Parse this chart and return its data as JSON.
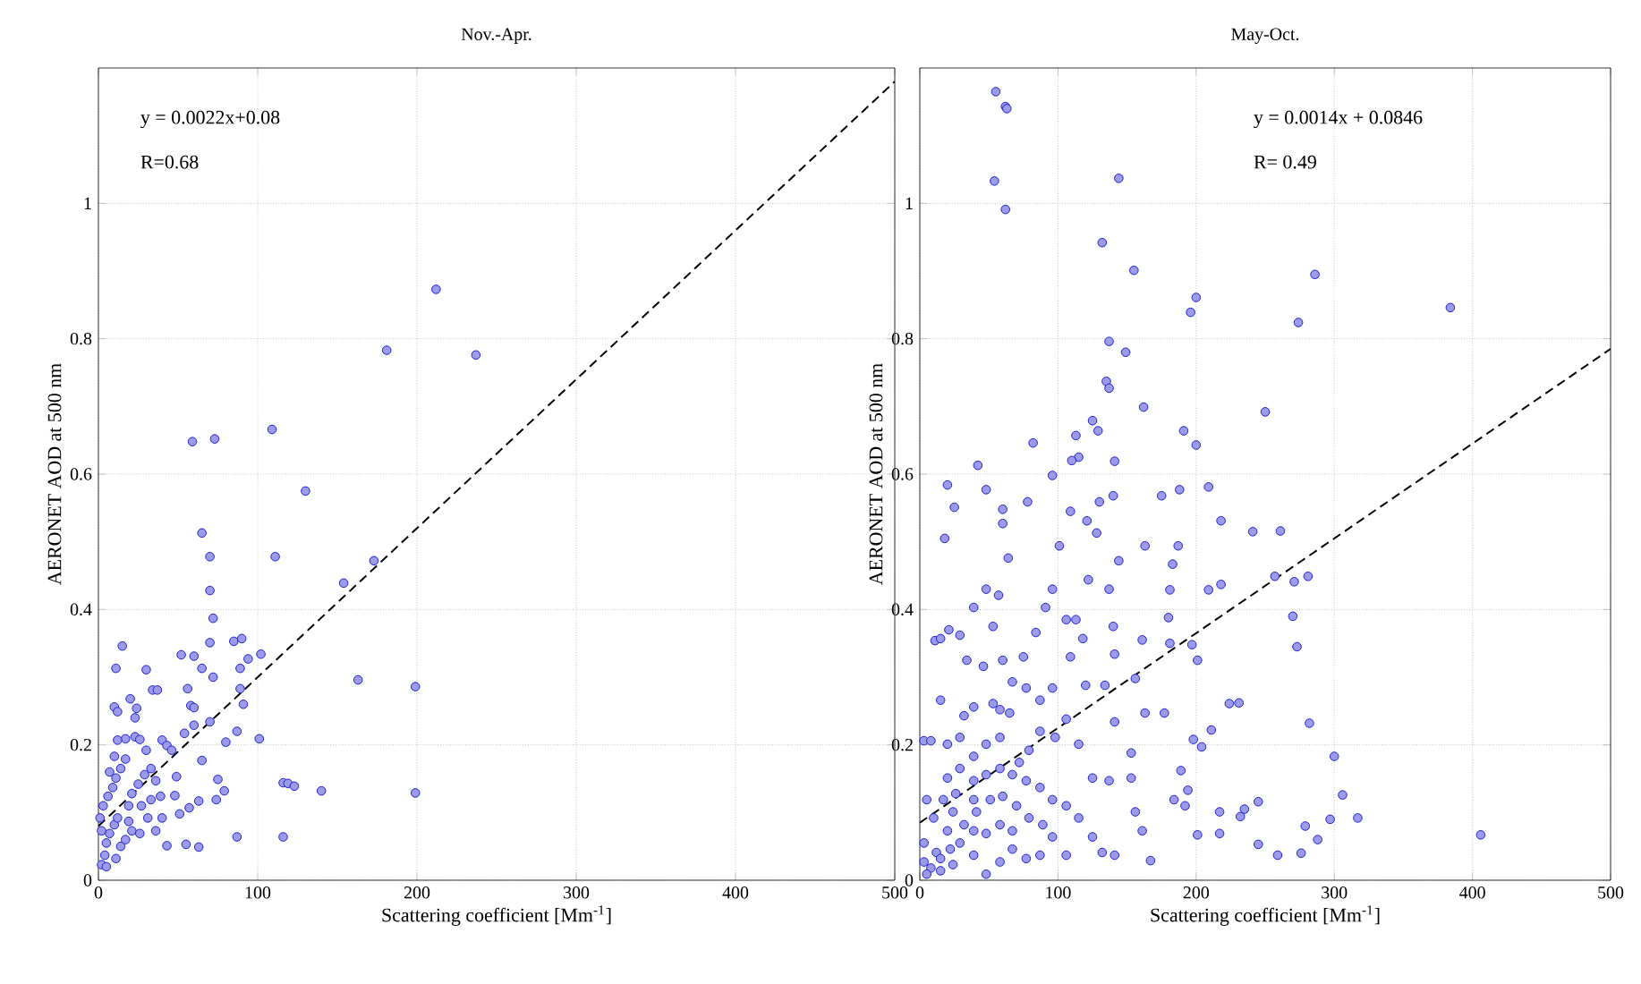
{
  "chart_data": [
    {
      "type": "scatter",
      "title": "Nov.-Apr.",
      "xlabel": "Scattering coefficient [Mm$^{-1}$]",
      "ylabel": "AERONET AOD at 500 nm",
      "xlim": [
        0,
        500
      ],
      "ylim": [
        0,
        1.2
      ],
      "xticks": [
        0,
        100,
        200,
        300,
        400,
        500
      ],
      "yticks": [
        0,
        0.2,
        0.4,
        0.6,
        0.8,
        1
      ],
      "grid": true,
      "marker": "circle",
      "annotations": [
        "y = 0.0022x+0.08",
        "R=0.68"
      ],
      "series": [
        {
          "color": "#2020d0",
          "x": [
            212,
            181,
            237,
            59,
            73,
            109,
            130,
            65,
            70,
            111,
            173,
            154,
            70,
            72,
            70,
            85,
            90,
            94,
            102,
            89,
            15,
            11,
            30,
            52,
            60,
            65,
            72,
            163,
            199,
            34,
            37,
            56,
            89,
            10,
            12,
            20,
            24,
            58,
            60,
            91,
            23,
            70,
            17,
            12,
            23,
            26,
            40,
            43,
            46,
            30,
            54,
            60,
            87,
            80,
            101,
            65,
            75,
            79,
            74,
            49,
            48,
            63,
            57,
            51,
            116,
            119,
            123,
            140,
            199,
            87,
            116,
            43,
            55,
            63,
            36,
            40,
            39,
            36,
            33,
            2,
            4,
            5,
            7,
            10,
            12,
            2,
            1,
            3,
            6,
            9,
            11,
            14,
            17,
            10,
            7,
            19,
            21,
            25,
            27,
            31,
            21,
            17,
            26,
            11,
            14,
            19,
            33,
            29,
            5
          ],
          "values": [
            0.873,
            0.783,
            0.776,
            0.648,
            0.652,
            0.666,
            0.575,
            0.513,
            0.478,
            0.478,
            0.472,
            0.439,
            0.428,
            0.387,
            0.351,
            0.353,
            0.357,
            0.327,
            0.334,
            0.313,
            0.346,
            0.313,
            0.311,
            0.333,
            0.331,
            0.313,
            0.3,
            0.296,
            0.286,
            0.281,
            0.281,
            0.283,
            0.283,
            0.256,
            0.249,
            0.268,
            0.254,
            0.258,
            0.255,
            0.26,
            0.24,
            0.234,
            0.209,
            0.207,
            0.212,
            0.208,
            0.207,
            0.199,
            0.192,
            0.192,
            0.217,
            0.229,
            0.22,
            0.204,
            0.209,
            0.177,
            0.149,
            0.132,
            0.119,
            0.153,
            0.125,
            0.117,
            0.107,
            0.098,
            0.144,
            0.143,
            0.139,
            0.132,
            0.129,
            0.064,
            0.064,
            0.051,
            0.053,
            0.049,
            0.073,
            0.092,
            0.124,
            0.147,
            0.165,
            0.023,
            0.037,
            0.055,
            0.069,
            0.082,
            0.092,
            0.073,
            0.092,
            0.11,
            0.124,
            0.137,
            0.151,
            0.165,
            0.179,
            0.183,
            0.16,
            0.11,
            0.128,
            0.142,
            0.11,
            0.092,
            0.073,
            0.06,
            0.069,
            0.032,
            0.05,
            0.087,
            0.119,
            0.156,
            0.02
          ]
        },
        {
          "type": "line",
          "line_style": "dashed",
          "marker": "none",
          "color": "#000000",
          "x": [
            0,
            500
          ],
          "values": [
            0.08,
            1.18
          ]
        }
      ]
    },
    {
      "type": "scatter",
      "title": "May-Oct.",
      "xlabel": "Scattering coefficient [Mm$^{-1}$]",
      "ylabel": "AERONET AOD at 500 nm",
      "xlim": [
        0,
        500
      ],
      "ylim": [
        0,
        1.2
      ],
      "xticks": [
        0,
        100,
        200,
        300,
        400,
        500
      ],
      "yticks": [
        0,
        0.2,
        0.4,
        0.6,
        0.8,
        1
      ],
      "grid": true,
      "marker": "circle",
      "annotations": [
        "y = 0.0014x + 0.0846",
        "R= 0.49"
      ],
      "series": [
        {
          "color": "#2020d0",
          "x": [
            55,
            62,
            63,
            54,
            144,
            62,
            132,
            155,
            286,
            200,
            196,
            274,
            384,
            137,
            149,
            135,
            137,
            162,
            250,
            82,
            125,
            129,
            113,
            191,
            200,
            115,
            110,
            141,
            42,
            20,
            48,
            96,
            25,
            60,
            60,
            18,
            64,
            78,
            130,
            140,
            175,
            188,
            209,
            218,
            241,
            261,
            257,
            271,
            281,
            270,
            273,
            282,
            300,
            306,
            317,
            297,
            288,
            279,
            276,
            259,
            245,
            245,
            235,
            232,
            217,
            217,
            201,
            167,
            406,
            224,
            231,
            211,
            204,
            198,
            189,
            194,
            184,
            192,
            177,
            197,
            201,
            181,
            180,
            181,
            183,
            187,
            209,
            218,
            163,
            161,
            156,
            163,
            153,
            153,
            156,
            161,
            141,
            132,
            125,
            137,
            125,
            115,
            141,
            134,
            141,
            140,
            137,
            144,
            122,
            128,
            121,
            109,
            101,
            96,
            91,
            84,
            75,
            67,
            77,
            87,
            96,
            109,
            106,
            113,
            118,
            120,
            106,
            98,
            87,
            79,
            72,
            58,
            53,
            65,
            39,
            32,
            15,
            11,
            15,
            21,
            29,
            39,
            34,
            48,
            57,
            46,
            60,
            53,
            3,
            8,
            20,
            29,
            20,
            29,
            39,
            48,
            58,
            39,
            48,
            58,
            67,
            77,
            87,
            96,
            106,
            115,
            96,
            87,
            77,
            67,
            58,
            48,
            39,
            29,
            20,
            10,
            5,
            3,
            3,
            8,
            15,
            24,
            12,
            22,
            32,
            41,
            51,
            60,
            70,
            79,
            89,
            106,
            39,
            48,
            58,
            67,
            24,
            17,
            26,
            39,
            15,
            5
          ],
          "values": [
            1.165,
            1.143,
            1.14,
            1.033,
            1.037,
            0.991,
            0.942,
            0.901,
            0.895,
            0.861,
            0.839,
            0.824,
            0.846,
            0.796,
            0.78,
            0.737,
            0.727,
            0.699,
            0.692,
            0.646,
            0.679,
            0.664,
            0.657,
            0.664,
            0.643,
            0.625,
            0.62,
            0.619,
            0.613,
            0.584,
            0.577,
            0.598,
            0.551,
            0.548,
            0.527,
            0.505,
            0.476,
            0.559,
            0.559,
            0.568,
            0.568,
            0.577,
            0.581,
            0.531,
            0.515,
            0.516,
            0.449,
            0.441,
            0.449,
            0.39,
            0.345,
            0.232,
            0.183,
            0.126,
            0.092,
            0.09,
            0.06,
            0.08,
            0.04,
            0.037,
            0.053,
            0.116,
            0.105,
            0.094,
            0.101,
            0.069,
            0.067,
            0.029,
            0.067,
            0.261,
            0.262,
            0.222,
            0.197,
            0.208,
            0.162,
            0.133,
            0.119,
            0.11,
            0.247,
            0.348,
            0.325,
            0.35,
            0.388,
            0.429,
            0.467,
            0.494,
            0.429,
            0.437,
            0.494,
            0.355,
            0.298,
            0.247,
            0.188,
            0.151,
            0.101,
            0.073,
            0.037,
            0.041,
            0.064,
            0.147,
            0.151,
            0.201,
            0.234,
            0.288,
            0.334,
            0.375,
            0.43,
            0.472,
            0.444,
            0.513,
            0.531,
            0.545,
            0.494,
            0.43,
            0.403,
            0.366,
            0.33,
            0.293,
            0.284,
            0.266,
            0.284,
            0.33,
            0.385,
            0.385,
            0.357,
            0.288,
            0.238,
            0.211,
            0.22,
            0.192,
            0.174,
            0.252,
            0.261,
            0.247,
            0.256,
            0.243,
            0.266,
            0.354,
            0.357,
            0.37,
            0.362,
            0.403,
            0.325,
            0.43,
            0.421,
            0.316,
            0.325,
            0.375,
            0.206,
            0.206,
            0.201,
            0.211,
            0.151,
            0.165,
            0.183,
            0.201,
            0.211,
            0.147,
            0.156,
            0.165,
            0.156,
            0.147,
            0.137,
            0.119,
            0.11,
            0.092,
            0.064,
            0.037,
            0.032,
            0.046,
            0.027,
            0.009,
            0.037,
            0.055,
            0.073,
            0.092,
            0.119,
            0.055,
            0.027,
            0.018,
            0.014,
            0.023,
            0.041,
            0.046,
            0.082,
            0.101,
            0.119,
            0.124,
            0.11,
            0.092,
            0.082,
            0.037,
            0.073,
            0.069,
            0.082,
            0.073,
            0.101,
            0.119,
            0.128,
            0.119,
            0.032,
            0.009
          ]
        },
        {
          "type": "line",
          "line_style": "dashed",
          "marker": "none",
          "color": "#000000",
          "x": [
            0,
            500
          ],
          "values": [
            0.085,
            0.785
          ]
        }
      ]
    }
  ]
}
